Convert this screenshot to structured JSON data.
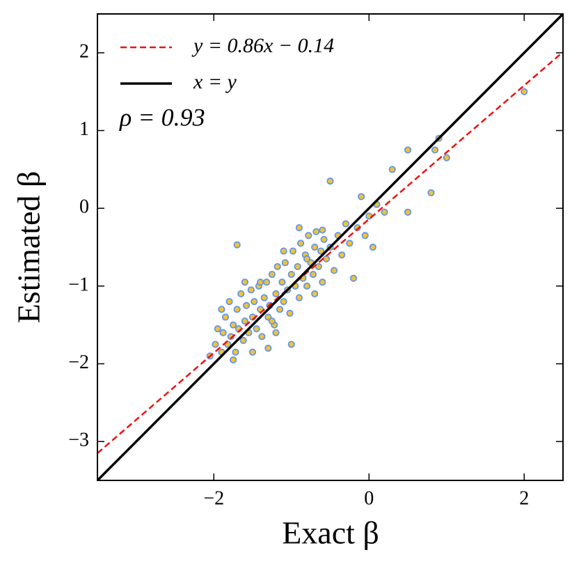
{
  "chart_data": {
    "type": "scatter",
    "xlabel": "Exact β",
    "ylabel": "Estimated β",
    "annotation": "ρ = 0.93",
    "xlim": [
      -3.5,
      2.5
    ],
    "ylim": [
      -3.5,
      2.5
    ],
    "xticks": [
      {
        "value": -2,
        "label": "−2"
      },
      0,
      2
    ],
    "yticks": [
      {
        "value": -3,
        "label": "−3"
      },
      {
        "value": -2,
        "label": "−2"
      },
      {
        "value": -1,
        "label": "−1"
      },
      0,
      1,
      2
    ],
    "legend": "upper left",
    "series": [
      {
        "name": "y = 0.86x − 0.14",
        "type": "line",
        "color": "#ee1111",
        "dashed": true,
        "x": [
          -3.5,
          2.5
        ],
        "values": [
          -3.15,
          2.01
        ]
      },
      {
        "name": "x = y",
        "type": "line",
        "color": "#000000",
        "dashed": false,
        "x": [
          -3.5,
          2.5
        ],
        "values": [
          -3.5,
          2.5
        ]
      },
      {
        "type": "scatter",
        "color": "#f0c430",
        "edgecolor": "#6495ed",
        "x": [
          -2.05,
          -1.98,
          -1.95,
          -1.9,
          -1.88,
          -1.85,
          -1.82,
          -1.8,
          -1.78,
          -1.75,
          -1.72,
          -1.7,
          -1.68,
          -1.65,
          -1.62,
          -1.6,
          -1.58,
          -1.55,
          -1.52,
          -1.5,
          -1.48,
          -1.45,
          -1.42,
          -1.4,
          -1.38,
          -1.35,
          -1.32,
          -1.3,
          -1.28,
          -1.25,
          -1.22,
          -1.2,
          -1.18,
          -1.15,
          -1.12,
          -1.1,
          -1.08,
          -1.05,
          -1.02,
          -1.0,
          -0.98,
          -0.95,
          -0.92,
          -0.9,
          -0.88,
          -0.85,
          -0.82,
          -0.8,
          -0.78,
          -0.75,
          -0.72,
          -0.7,
          -0.68,
          -0.65,
          -0.62,
          -0.6,
          -0.58,
          -0.55,
          -0.5,
          -0.45,
          -0.4,
          -0.35,
          -0.3,
          -0.25,
          -0.2,
          -0.15,
          -0.1,
          -0.05,
          0.0,
          0.05,
          0.1,
          0.2,
          0.3,
          0.5,
          0.5,
          0.8,
          0.85,
          0.9,
          1.0,
          2.0,
          -0.5,
          -1.7,
          -1.0,
          -1.6,
          -1.3,
          -1.1,
          -0.9,
          -0.7,
          -1.5,
          -1.9,
          -1.2,
          -0.8,
          -0.6,
          -1.4,
          -1.75,
          -1.25
        ],
        "values": [
          -1.9,
          -1.75,
          -1.55,
          -1.85,
          -1.6,
          -1.4,
          -1.75,
          -1.2,
          -1.65,
          -1.5,
          -1.85,
          -1.3,
          -1.55,
          -1.1,
          -1.7,
          -1.45,
          -1.25,
          -1.6,
          -1.05,
          -1.4,
          -1.2,
          -1.55,
          -1.0,
          -1.3,
          -1.65,
          -1.15,
          -0.95,
          -1.4,
          -1.25,
          -0.85,
          -1.5,
          -1.1,
          -0.75,
          -1.3,
          -0.95,
          -1.2,
          -0.7,
          -1.05,
          -1.35,
          -0.85,
          -0.55,
          -1.0,
          -0.75,
          -1.15,
          -0.45,
          -0.9,
          -0.6,
          -1.0,
          -0.35,
          -0.7,
          -0.85,
          -0.5,
          -0.3,
          -0.75,
          -0.55,
          -0.95,
          -0.4,
          -0.65,
          -0.5,
          -0.8,
          -0.35,
          -0.6,
          -0.2,
          -0.45,
          -0.9,
          -0.25,
          0.15,
          -0.35,
          -0.1,
          -0.5,
          0.05,
          -0.05,
          0.5,
          0.75,
          -0.05,
          0.2,
          0.75,
          0.9,
          0.65,
          1.5,
          0.35,
          -0.47,
          -1.75,
          -0.95,
          -1.8,
          -0.55,
          -0.25,
          -1.1,
          -1.85,
          -1.3,
          -1.6,
          -0.65,
          -0.28,
          -0.95,
          -1.95,
          -1.45
        ]
      }
    ]
  }
}
